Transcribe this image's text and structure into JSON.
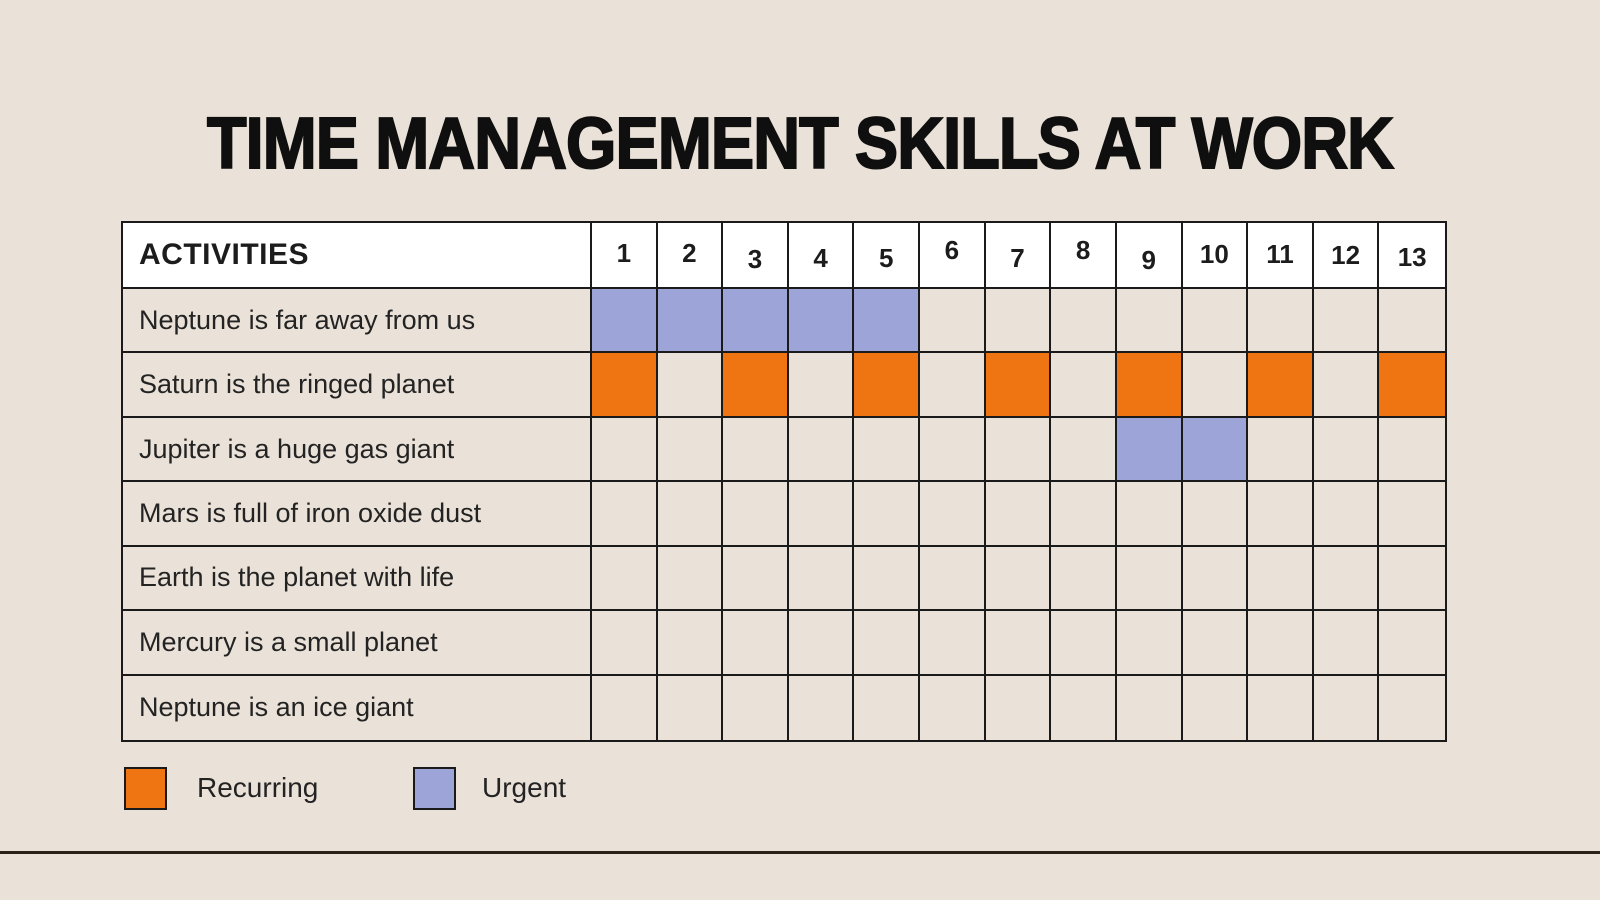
{
  "title": "TIME MANAGEMENT SKILLS AT WORK",
  "table": {
    "header_label": "ACTIVITIES",
    "columns": [
      "1",
      "2",
      "3",
      "4",
      "5",
      "6",
      "7",
      "8",
      "9",
      "10",
      "11",
      "12",
      "13"
    ],
    "rows": [
      {
        "label": "Neptune is far away from us",
        "cells": [
          "urgent",
          "urgent",
          "urgent",
          "urgent",
          "urgent",
          "",
          "",
          "",
          "",
          "",
          "",
          "",
          ""
        ]
      },
      {
        "label": "Saturn is the ringed planet",
        "cells": [
          "recurring",
          "",
          "recurring",
          "",
          "recurring",
          "",
          "recurring",
          "",
          "recurring",
          "",
          "recurring",
          "",
          "recurring"
        ]
      },
      {
        "label": "Jupiter is a huge gas giant",
        "cells": [
          "",
          "",
          "",
          "",
          "",
          "",
          "",
          "",
          "urgent",
          "urgent",
          "",
          "",
          ""
        ]
      },
      {
        "label": "Mars is full of iron oxide dust",
        "cells": [
          "",
          "",
          "",
          "",
          "",
          "",
          "",
          "",
          "",
          "",
          "",
          "",
          ""
        ]
      },
      {
        "label": "Earth is the planet with life",
        "cells": [
          "",
          "",
          "",
          "",
          "",
          "",
          "",
          "",
          "",
          "",
          "",
          "",
          ""
        ]
      },
      {
        "label": "Mercury is a small planet",
        "cells": [
          "",
          "",
          "",
          "",
          "",
          "",
          "",
          "",
          "",
          "",
          "",
          "",
          ""
        ]
      },
      {
        "label": "Neptune is an ice giant",
        "cells": [
          "",
          "",
          "",
          "",
          "",
          "",
          "",
          "",
          "",
          "",
          "",
          "",
          ""
        ]
      }
    ]
  },
  "legend": [
    {
      "label": "Recurring",
      "type": "recurring",
      "color": "#EE7511"
    },
    {
      "label": "Urgent",
      "type": "urgent",
      "color": "#9CA4D8"
    }
  ],
  "colors": {
    "background": "#EAE2D8",
    "header_bg": "#FFFFFF",
    "grid_border": "#1A1A1A",
    "recurring": "#EE7511",
    "urgent": "#9CA4D8",
    "title_text": "#0F0F0F",
    "body_text": "#232323"
  },
  "chart_data": {
    "type": "table",
    "subtype": "gantt",
    "title": "TIME MANAGEMENT SKILLS AT WORK",
    "x_categories": [
      "1",
      "2",
      "3",
      "4",
      "5",
      "6",
      "7",
      "8",
      "9",
      "10",
      "11",
      "12",
      "13"
    ],
    "activities": [
      "Neptune is far away from us",
      "Saturn is the ringed planet",
      "Jupiter is a huge gas giant",
      "Mars is full of iron oxide dust",
      "Earth is the planet with life",
      "Mercury is a small planet",
      "Neptune is an ice giant"
    ],
    "marks": [
      {
        "activity": "Neptune is far away from us",
        "type": "urgent",
        "columns": [
          1,
          2,
          3,
          4,
          5
        ]
      },
      {
        "activity": "Saturn is the ringed planet",
        "type": "recurring",
        "columns": [
          1,
          3,
          5,
          7,
          9,
          11,
          13
        ]
      },
      {
        "activity": "Jupiter is a huge gas giant",
        "type": "urgent",
        "columns": [
          9,
          10
        ]
      }
    ],
    "legend": [
      {
        "label": "Recurring",
        "color": "#EE7511"
      },
      {
        "label": "Urgent",
        "color": "#9CA4D8"
      }
    ],
    "legend_position": "bottom-left",
    "grid": true
  }
}
